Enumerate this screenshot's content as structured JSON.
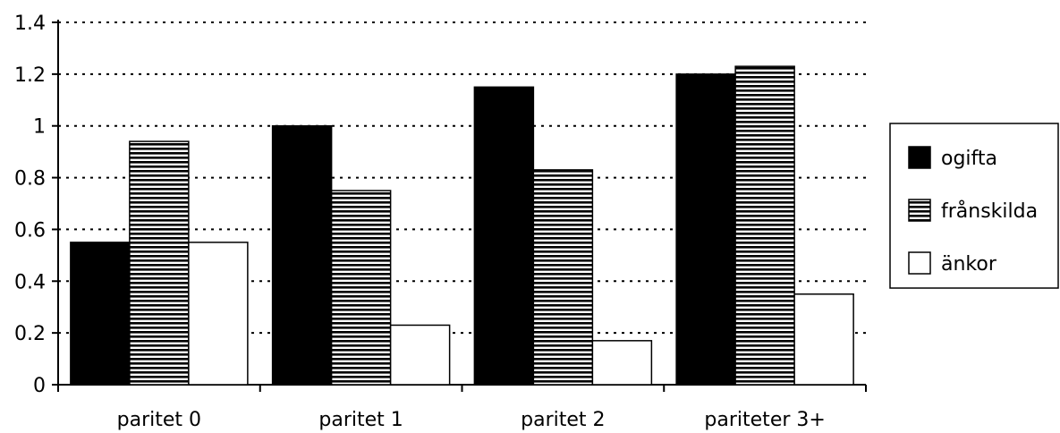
{
  "chart_data": {
    "type": "bar",
    "categories": [
      "paritet 0",
      "paritet 1",
      "paritet 2",
      "pariteter 3+"
    ],
    "series": [
      {
        "name": "ogifta",
        "values": [
          0.55,
          1.0,
          1.15,
          1.2
        ],
        "style": "solid-black"
      },
      {
        "name": "frånskilda",
        "values": [
          0.94,
          0.75,
          0.83,
          1.23
        ],
        "style": "horizontal-stripes"
      },
      {
        "name": "änkor",
        "values": [
          0.55,
          0.23,
          0.17,
          0.35
        ],
        "style": "white"
      }
    ],
    "yticks": [
      "0",
      "0.2",
      "0.4",
      "0.6",
      "0.8",
      "1",
      "1.2",
      "1.4"
    ],
    "ylim": [
      0,
      1.4
    ],
    "title": "",
    "xlabel": "",
    "ylabel": "",
    "grid": "horizontal-dotted",
    "legend_position": "right"
  }
}
